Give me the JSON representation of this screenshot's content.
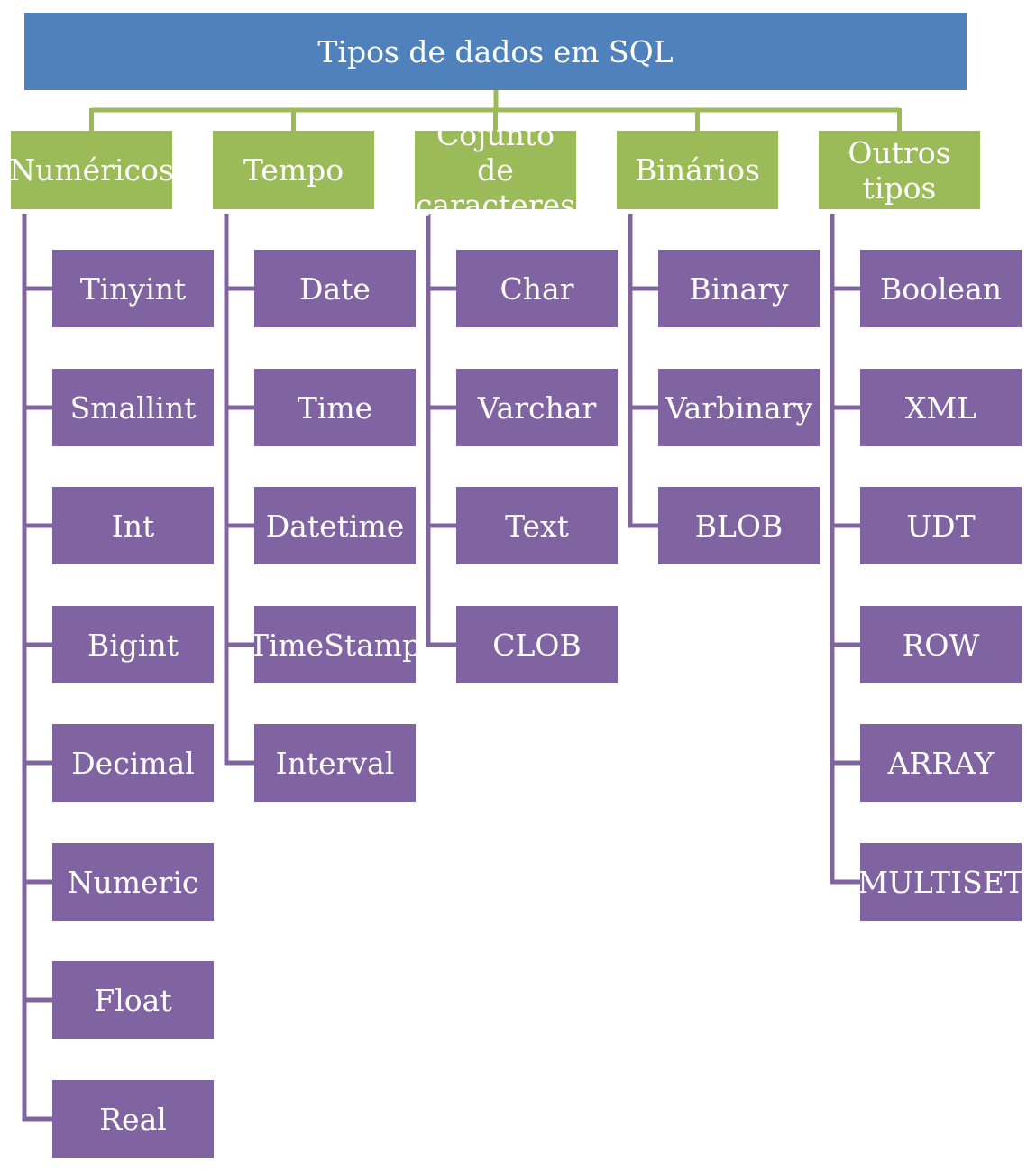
{
  "title": "Tipos de dados em SQL",
  "colors": {
    "root": "#4f81bd",
    "category": "#9bbb59",
    "item": "#8064a2",
    "category_connector": "#9bbb59",
    "item_connector": "#8064a2",
    "text": "#ffffff"
  },
  "categories": [
    {
      "label": "Numéricos",
      "items": [
        "Tinyint",
        "Smallint",
        "Int",
        "Bigint",
        "Decimal",
        "Numeric",
        "Float",
        "Real"
      ]
    },
    {
      "label": "Tempo",
      "items": [
        "Date",
        "Time",
        "Datetime",
        "TimeStamp",
        "Interval"
      ]
    },
    {
      "label": "Cojunto de\ncaracteres",
      "items": [
        "Char",
        "Varchar",
        "Text",
        "CLOB"
      ]
    },
    {
      "label": "Binários",
      "items": [
        "Binary",
        "Varbinary",
        "BLOB"
      ]
    },
    {
      "label": "Outros\ntipos",
      "items": [
        "Boolean",
        "XML",
        "UDT",
        "ROW",
        "ARRAY",
        "MULTISET"
      ]
    }
  ]
}
